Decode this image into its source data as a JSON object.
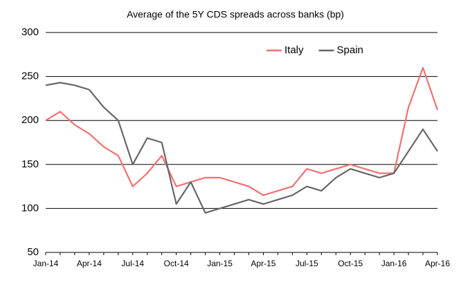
{
  "chart_data": {
    "type": "line",
    "title": "Average of the 5Y CDS spreads across banks (bp)",
    "categories": [
      "Jan-14",
      null,
      null,
      "Apr-14",
      null,
      null,
      "Jul-14",
      null,
      null,
      "Oct-14",
      null,
      null,
      "Jan-15",
      null,
      null,
      "Apr-15",
      null,
      null,
      "Jul-15",
      null,
      null,
      "Oct-15",
      null,
      null,
      "Jan-16",
      null,
      null,
      "Apr-16"
    ],
    "series": [
      {
        "name": "Italy",
        "color": "#f07070",
        "values": [
          200,
          210,
          195,
          185,
          170,
          160,
          125,
          140,
          160,
          125,
          130,
          135,
          135,
          130,
          125,
          115,
          120,
          125,
          145,
          140,
          145,
          150,
          145,
          140,
          140,
          215,
          260,
          212
        ]
      },
      {
        "name": "Spain",
        "color": "#666666",
        "values": [
          240,
          243,
          240,
          235,
          215,
          200,
          150,
          180,
          175,
          105,
          130,
          95,
          100,
          105,
          110,
          105,
          110,
          115,
          125,
          120,
          135,
          145,
          140,
          135,
          140,
          165,
          190,
          165
        ]
      }
    ],
    "ylim": [
      50,
      300
    ],
    "yticks": [
      50,
      100,
      150,
      200,
      250,
      300
    ],
    "grid": true,
    "legend": "top-right"
  }
}
